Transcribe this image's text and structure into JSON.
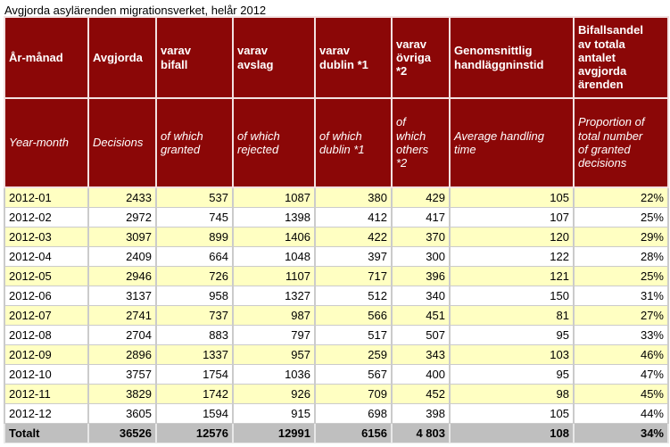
{
  "title": "Avgjorda asylärenden migrationsverket, helår 2012",
  "table": {
    "headers_sv": [
      "År-månad",
      "Avgjorda",
      "varav\nbifall",
      "varav\navslag",
      "varav\ndublin *1",
      "varav\növriga\n*2",
      "Genomsnittlig\nhandläggninstid",
      "Bifallsandel\nav totala\nantalet\navgjorda\närenden"
    ],
    "headers_en": [
      "Year-month",
      "Decisions",
      "of which\ngranted",
      "of which\nrejected",
      "of which\ndublin *1",
      "of\nwhich\nothers\n*2",
      "Average handling\ntime",
      "Proportion of\ntotal number\nof granted\ndecisions"
    ],
    "rows": [
      [
        "2012-01",
        "2433",
        "537",
        "1087",
        "380",
        "429",
        "105",
        "22%"
      ],
      [
        "2012-02",
        "2972",
        "745",
        "1398",
        "412",
        "417",
        "107",
        "25%"
      ],
      [
        "2012-03",
        "3097",
        "899",
        "1406",
        "422",
        "370",
        "120",
        "29%"
      ],
      [
        "2012-04",
        "2409",
        "664",
        "1048",
        "397",
        "300",
        "122",
        "28%"
      ],
      [
        "2012-05",
        "2946",
        "726",
        "1107",
        "717",
        "396",
        "121",
        "25%"
      ],
      [
        "2012-06",
        "3137",
        "958",
        "1327",
        "512",
        "340",
        "150",
        "31%"
      ],
      [
        "2012-07",
        "2741",
        "737",
        "987",
        "566",
        "451",
        "81",
        "27%"
      ],
      [
        "2012-08",
        "2704",
        "883",
        "797",
        "517",
        "507",
        "95",
        "33%"
      ],
      [
        "2012-09",
        "2896",
        "1337",
        "957",
        "259",
        "343",
        "103",
        "46%"
      ],
      [
        "2012-10",
        "3757",
        "1754",
        "1036",
        "567",
        "400",
        "95",
        "47%"
      ],
      [
        "2012-11",
        "3829",
        "1742",
        "926",
        "709",
        "452",
        "98",
        "45%"
      ],
      [
        "2012-12",
        "3605",
        "1594",
        "915",
        "698",
        "398",
        "105",
        "44%"
      ]
    ],
    "total": [
      "Totalt",
      "36526",
      "12576",
      "12991",
      "6156",
      "4 803",
      "108",
      "34%"
    ]
  },
  "colors": {
    "header_bg": "#8B0707",
    "header_text": "#FFFFFF",
    "alt_row_bg": "#FFFFC2",
    "row_bg": "#FFFFFF",
    "total_bg": "#BFBFBF",
    "grid": "#CBCBCB",
    "header_grid": "#F2E1E1"
  },
  "chart_data": {
    "type": "table",
    "title": "Avgjorda asylärenden migrationsverket, helår 2012",
    "columns": [
      "Year-month",
      "Decisions",
      "of which granted",
      "of which rejected",
      "of which dublin *1",
      "of which others *2",
      "Average handling time",
      "Proportion of total number of granted decisions"
    ],
    "rows": [
      [
        "2012-01",
        2433,
        537,
        1087,
        380,
        429,
        105,
        "22%"
      ],
      [
        "2012-02",
        2972,
        745,
        1398,
        412,
        417,
        107,
        "25%"
      ],
      [
        "2012-03",
        3097,
        899,
        1406,
        422,
        370,
        120,
        "29%"
      ],
      [
        "2012-04",
        2409,
        664,
        1048,
        397,
        300,
        122,
        "28%"
      ],
      [
        "2012-05",
        2946,
        726,
        1107,
        717,
        396,
        121,
        "25%"
      ],
      [
        "2012-06",
        3137,
        958,
        1327,
        512,
        340,
        150,
        "31%"
      ],
      [
        "2012-07",
        2741,
        737,
        987,
        566,
        451,
        81,
        "27%"
      ],
      [
        "2012-08",
        2704,
        883,
        797,
        517,
        507,
        95,
        "33%"
      ],
      [
        "2012-09",
        2896,
        1337,
        957,
        259,
        343,
        103,
        "46%"
      ],
      [
        "2012-10",
        3757,
        1754,
        1036,
        567,
        400,
        95,
        "47%"
      ],
      [
        "2012-11",
        3829,
        1742,
        926,
        709,
        452,
        98,
        "45%"
      ],
      [
        "2012-12",
        3605,
        1594,
        915,
        698,
        398,
        105,
        "44%"
      ]
    ],
    "total_row": [
      "Totalt",
      36526,
      12576,
      12991,
      6156,
      4803,
      108,
      "34%"
    ]
  }
}
